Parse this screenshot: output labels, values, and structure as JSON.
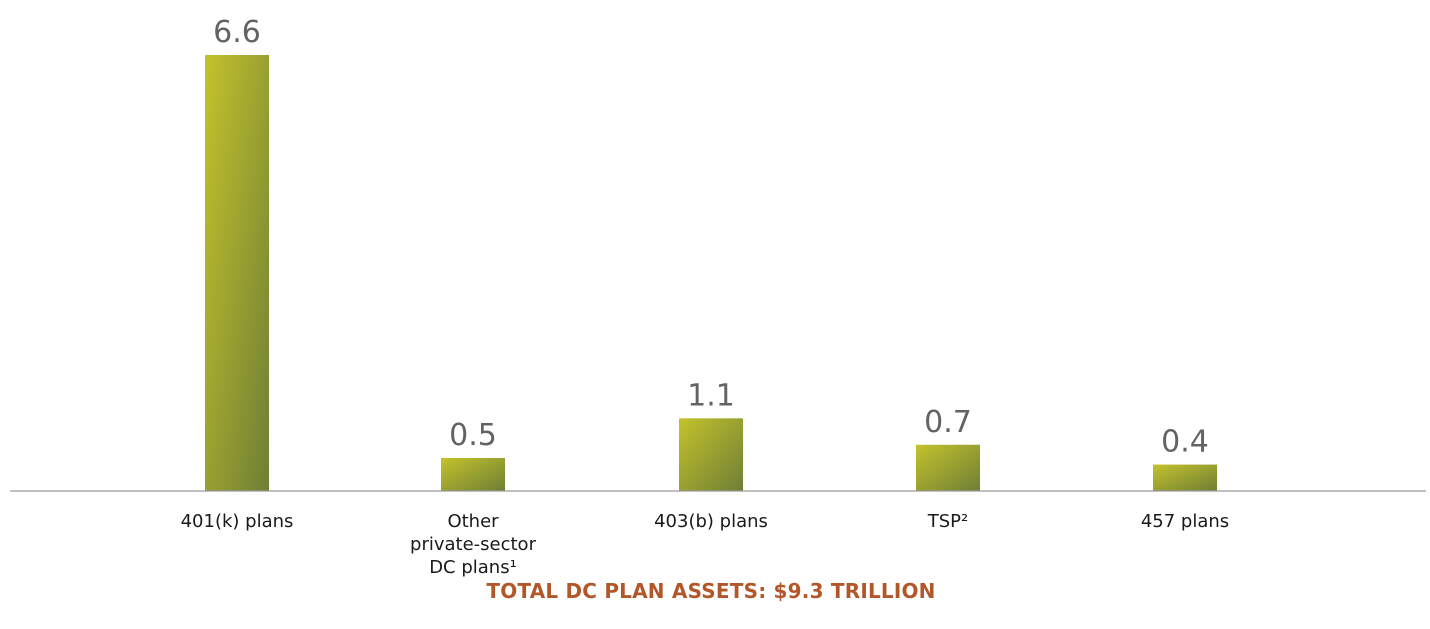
{
  "chart_data": {
    "type": "bar",
    "categories": [
      [
        "401(k) plans"
      ],
      [
        "Other",
        "private-sector",
        "DC plans¹"
      ],
      [
        "403(b) plans"
      ],
      [
        "TSP²"
      ],
      [
        "457 plans"
      ]
    ],
    "values": [
      6.6,
      0.5,
      1.1,
      0.7,
      0.4
    ],
    "value_labels": [
      "6.6",
      "0.5",
      "1.1",
      "0.7",
      "0.4"
    ],
    "ylim": [
      0,
      6.6
    ],
    "grid": false,
    "legend": "none",
    "colors": {
      "bar_top": "#c4c22c",
      "bar_bottom": "#6e7f35",
      "value_text": "#626366",
      "axis": "#999999",
      "footer": "#b2572a"
    }
  },
  "footer": {
    "total": "TOTAL DC PLAN ASSETS: $9.3 TRILLION"
  }
}
